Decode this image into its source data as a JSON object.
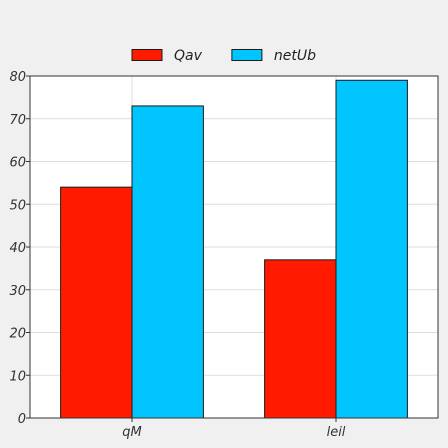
{
  "chart_data": {
    "type": "bar",
    "title": "",
    "xlabel": "",
    "ylabel": "",
    "categories": [
      "qM",
      "leil"
    ],
    "series": [
      {
        "name": "Qav",
        "color": "#ff1a00",
        "values": [
          54,
          37
        ]
      },
      {
        "name": "netUb",
        "color": "#00c5ff",
        "values": [
          73,
          79
        ]
      }
    ],
    "ylim": [
      0,
      80
    ],
    "yticks": [
      0,
      10,
      20,
      30,
      40,
      50,
      60,
      70,
      80
    ],
    "grid": true,
    "legend_position": "top-center"
  }
}
